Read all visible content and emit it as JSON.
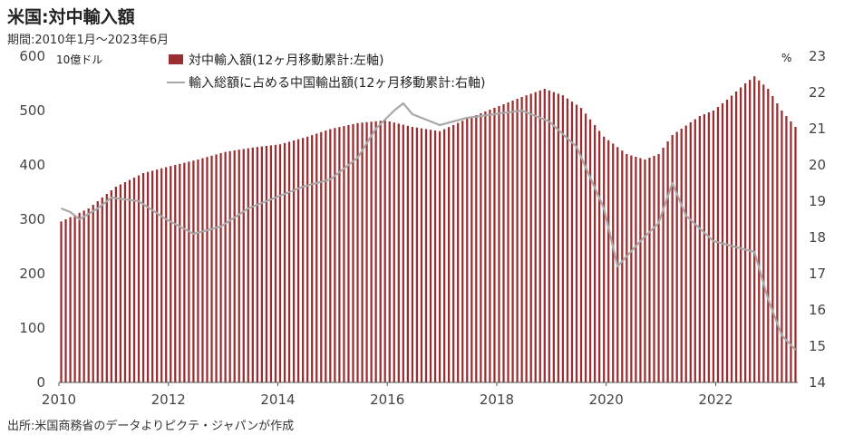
{
  "title": "米国:対中輸入額",
  "subtitle": "期間:2010年1月～2023年6月",
  "source": "出所:米国商務省のデータよりピクテ・ジャパンが作成",
  "chart_data": {
    "type": "bar",
    "combo": "bar + line (dual axis)",
    "left_axis_unit": "10億ドル",
    "right_axis_unit": "%",
    "y_left_ticks": [
      0,
      100,
      200,
      300,
      400,
      500,
      600
    ],
    "y_left_lim": [
      0,
      600
    ],
    "y_right_ticks": [
      14,
      15,
      16,
      17,
      18,
      19,
      20,
      21,
      22,
      23
    ],
    "y_right_lim": [
      14,
      23
    ],
    "x_ticks": [
      "2010",
      "2012",
      "2014",
      "2016",
      "2018",
      "2020",
      "2022"
    ],
    "x_range": [
      "2010-01",
      "2023-06"
    ],
    "legend": {
      "placement": "top-center"
    },
    "colors": {
      "bars": "#9b2d30",
      "line": "#a8a8a8"
    },
    "series": [
      {
        "name": "対中輸入額(12ヶ月移動累計:左軸)",
        "type": "bar",
        "axis": "left",
        "anchors": [
          [
            "2010-01",
            296
          ],
          [
            "2010-07",
            320
          ],
          [
            "2011-01",
            360
          ],
          [
            "2011-07",
            385
          ],
          [
            "2012-01",
            398
          ],
          [
            "2012-07",
            410
          ],
          [
            "2013-01",
            424
          ],
          [
            "2013-07",
            432
          ],
          [
            "2014-01",
            438
          ],
          [
            "2014-07",
            452
          ],
          [
            "2014-12",
            466
          ],
          [
            "2015-06",
            477
          ],
          [
            "2015-12",
            482
          ],
          [
            "2016-06",
            470
          ],
          [
            "2016-12",
            462
          ],
          [
            "2017-06",
            485
          ],
          [
            "2017-12",
            505
          ],
          [
            "2018-06",
            525
          ],
          [
            "2018-11",
            540
          ],
          [
            "2019-03",
            528
          ],
          [
            "2019-07",
            505
          ],
          [
            "2019-12",
            452
          ],
          [
            "2020-05",
            420
          ],
          [
            "2020-09",
            410
          ],
          [
            "2020-12",
            420
          ],
          [
            "2021-03",
            455
          ],
          [
            "2021-09",
            490
          ],
          [
            "2021-12",
            500
          ],
          [
            "2022-03",
            520
          ],
          [
            "2022-07",
            550
          ],
          [
            "2022-09",
            563
          ],
          [
            "2022-12",
            540
          ],
          [
            "2023-03",
            500
          ],
          [
            "2023-06",
            470
          ]
        ]
      },
      {
        "name": "輸入総額に占める中国輸出額(12ヶ月移動累計:右軸)",
        "type": "line",
        "axis": "right",
        "anchors": [
          [
            "2010-01",
            18.8
          ],
          [
            "2010-03",
            18.7
          ],
          [
            "2010-05",
            18.5
          ],
          [
            "2010-09",
            18.8
          ],
          [
            "2010-12",
            19.1
          ],
          [
            "2011-06",
            19.0
          ],
          [
            "2011-12",
            18.5
          ],
          [
            "2012-06",
            18.1
          ],
          [
            "2012-12",
            18.3
          ],
          [
            "2013-06",
            18.8
          ],
          [
            "2013-12",
            19.1
          ],
          [
            "2014-06",
            19.4
          ],
          [
            "2014-12",
            19.6
          ],
          [
            "2015-06",
            20.2
          ],
          [
            "2015-10",
            21.0
          ],
          [
            "2016-02",
            21.5
          ],
          [
            "2016-04",
            21.7
          ],
          [
            "2016-06",
            21.4
          ],
          [
            "2016-12",
            21.1
          ],
          [
            "2017-06",
            21.3
          ],
          [
            "2017-12",
            21.4
          ],
          [
            "2018-06",
            21.5
          ],
          [
            "2018-12",
            21.2
          ],
          [
            "2019-06",
            20.5
          ],
          [
            "2019-12",
            18.8
          ],
          [
            "2020-03",
            17.2
          ],
          [
            "2020-08",
            17.9
          ],
          [
            "2020-12",
            18.4
          ],
          [
            "2021-03",
            19.5
          ],
          [
            "2021-06",
            18.6
          ],
          [
            "2021-12",
            17.9
          ],
          [
            "2022-06",
            17.7
          ],
          [
            "2022-09",
            17.6
          ],
          [
            "2022-12",
            16.3
          ],
          [
            "2023-03",
            15.3
          ],
          [
            "2023-06",
            14.9
          ]
        ]
      }
    ]
  }
}
